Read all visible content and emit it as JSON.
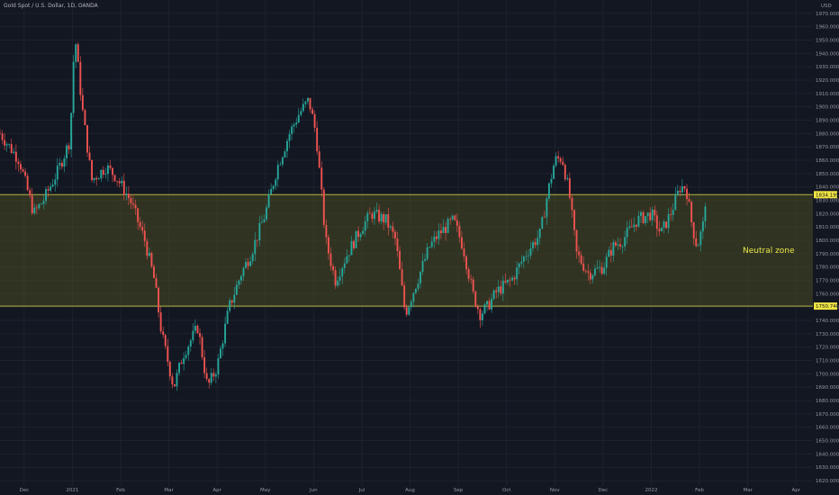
{
  "header": {
    "title": "Gold Spot / U.S. Dollar, 1D, OANDA",
    "currency": "USD"
  },
  "colors": {
    "background": "#131722",
    "grid": "#1e222d",
    "up": "#26a69a",
    "down": "#ef5350",
    "zone_fill": "#4a4a22",
    "zone_line": "#b5b542",
    "zone_text": "#e8e84a",
    "axis_text": "#9598a1"
  },
  "chart_data": {
    "type": "candlestick",
    "title": "Gold Spot / U.S. Dollar, 1D, OANDA",
    "y_tick_labels": [
      "1970.000",
      "1960.000",
      "1950.000",
      "1940.000",
      "1930.000",
      "1920.000",
      "1910.000",
      "1900.000",
      "1890.000",
      "1880.000",
      "1870.000",
      "1860.000",
      "1850.000",
      "1840.000",
      "1830.000",
      "1820.000",
      "1810.000",
      "1800.000",
      "1790.000",
      "1780.000",
      "1770.000",
      "1760.000",
      "1750.000",
      "1740.000",
      "1730.000",
      "1720.000",
      "1710.000",
      "1700.000",
      "1690.000",
      "1680.000",
      "1670.000",
      "1660.000",
      "1650.000",
      "1640.000",
      "1630.000",
      "1620.000"
    ],
    "ylim": [
      1616,
      1980
    ],
    "x_tick_labels": [
      "Dec",
      "2021",
      "Feb",
      "Mar",
      "Apr",
      "May",
      "Jun",
      "Jul",
      "Aug",
      "Sep",
      "Oct",
      "Nov",
      "Dec",
      "2022",
      "Feb",
      "Mar",
      "Apr"
    ],
    "x_months": [
      0.5,
      1.5,
      2.5,
      3.5,
      4.5,
      5.5,
      6.5,
      7.5,
      8.5,
      9.5,
      10.5,
      11.5,
      12.5,
      13.5,
      14.5,
      15.5,
      16.5
    ],
    "x_range": [
      0,
      16.85
    ],
    "last_month": 14.62,
    "zone": {
      "label": "Neutral zone",
      "upper": 1834.195,
      "lower": 1750.74,
      "upper_label": "1834.195",
      "lower_label": "1750.740"
    },
    "path": [
      [
        0,
        1880
      ],
      [
        0.4,
        1860
      ],
      [
        0.7,
        1820
      ],
      [
        0.9,
        1830
      ],
      [
        1.2,
        1852
      ],
      [
        1.45,
        1875
      ],
      [
        1.55,
        1955
      ],
      [
        1.7,
        1900
      ],
      [
        1.9,
        1845
      ],
      [
        2.2,
        1855
      ],
      [
        2.4,
        1848
      ],
      [
        2.7,
        1830
      ],
      [
        3.0,
        1800
      ],
      [
        3.2,
        1770
      ],
      [
        3.35,
        1730
      ],
      [
        3.6,
        1690
      ],
      [
        3.8,
        1715
      ],
      [
        4.1,
        1735
      ],
      [
        4.3,
        1690
      ],
      [
        4.5,
        1705
      ],
      [
        4.75,
        1750
      ],
      [
        5.0,
        1775
      ],
      [
        5.2,
        1790
      ],
      [
        5.5,
        1820
      ],
      [
        5.75,
        1855
      ],
      [
        6.0,
        1880
      ],
      [
        6.2,
        1895
      ],
      [
        6.4,
        1905
      ],
      [
        6.55,
        1880
      ],
      [
        6.75,
        1800
      ],
      [
        6.95,
        1770
      ],
      [
        7.2,
        1790
      ],
      [
        7.5,
        1810
      ],
      [
        7.7,
        1820
      ],
      [
        8.0,
        1815
      ],
      [
        8.2,
        1800
      ],
      [
        8.4,
        1745
      ],
      [
        8.6,
        1765
      ],
      [
        8.9,
        1795
      ],
      [
        9.1,
        1805
      ],
      [
        9.4,
        1815
      ],
      [
        9.6,
        1795
      ],
      [
        9.8,
        1760
      ],
      [
        9.95,
        1745
      ],
      [
        10.1,
        1750
      ],
      [
        10.3,
        1762
      ],
      [
        10.6,
        1770
      ],
      [
        10.9,
        1790
      ],
      [
        11.2,
        1805
      ],
      [
        11.35,
        1835
      ],
      [
        11.5,
        1860
      ],
      [
        11.65,
        1862
      ],
      [
        11.8,
        1835
      ],
      [
        11.95,
        1790
      ],
      [
        12.2,
        1775
      ],
      [
        12.5,
        1780
      ],
      [
        12.7,
        1795
      ],
      [
        12.9,
        1800
      ],
      [
        13.2,
        1815
      ],
      [
        13.5,
        1820
      ],
      [
        13.7,
        1805
      ],
      [
        13.9,
        1820
      ],
      [
        14.1,
        1840
      ],
      [
        14.22,
        1840
      ],
      [
        14.35,
        1810
      ],
      [
        14.45,
        1795
      ],
      [
        14.6,
        1815
      ],
      [
        14.62,
        1830
      ]
    ]
  }
}
